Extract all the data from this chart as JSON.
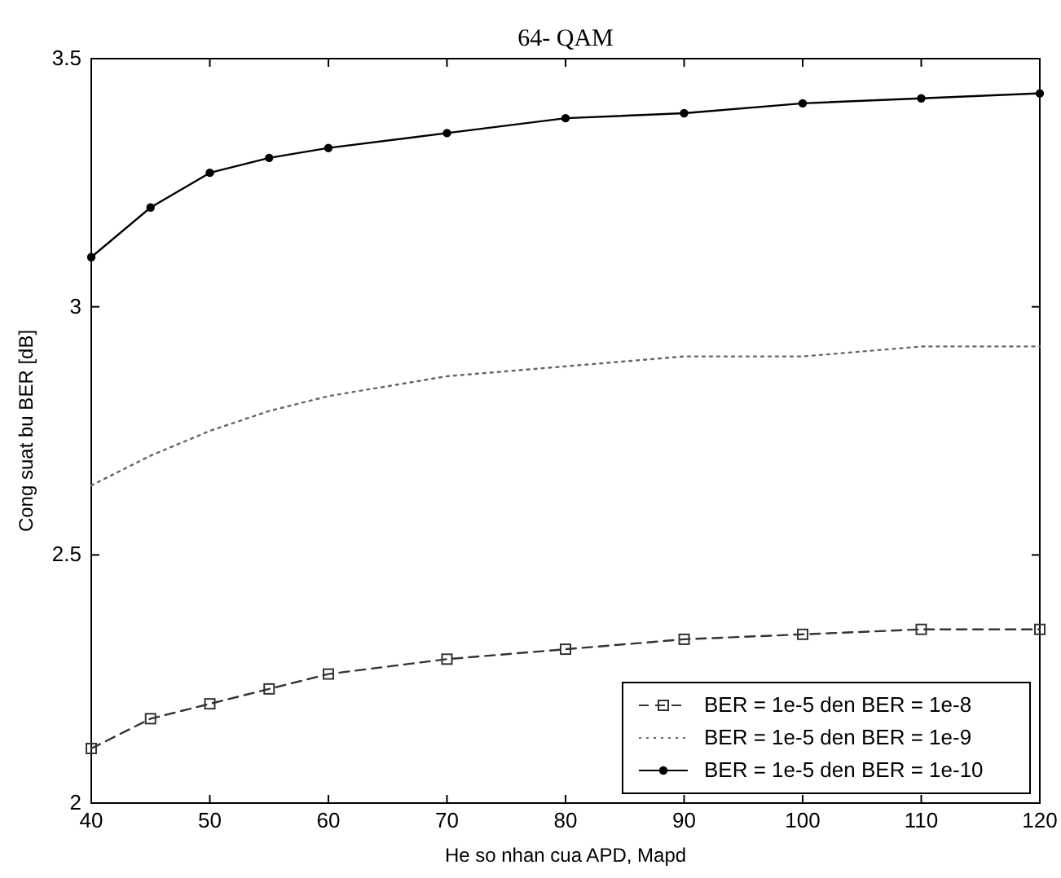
{
  "chart_data": {
    "type": "line",
    "title": "64- QAM",
    "xlabel": "He so nhan cua APD, Mapd",
    "ylabel": "Cong suat bu BER [dB]",
    "x": [
      40,
      45,
      50,
      55,
      60,
      70,
      80,
      90,
      100,
      110,
      120
    ],
    "series": [
      {
        "name": "BER = 1e-5 den BER = 1e-8",
        "color": "#333333",
        "marker": "square",
        "line_style": "dashed",
        "values": [
          2.11,
          2.17,
          2.2,
          2.23,
          2.26,
          2.29,
          2.31,
          2.33,
          2.34,
          2.35,
          2.35
        ]
      },
      {
        "name": "BER = 1e-5 den BER = 1e-9",
        "color": "#666666",
        "marker": "none",
        "line_style": "dotted",
        "values": [
          2.64,
          2.7,
          2.75,
          2.79,
          2.82,
          2.86,
          2.88,
          2.9,
          2.9,
          2.92,
          2.92
        ]
      },
      {
        "name": "BER = 1e-5 den BER = 1e-10",
        "color": "#000000",
        "marker": "circle",
        "line_style": "solid",
        "values": [
          3.1,
          3.2,
          3.27,
          3.3,
          3.32,
          3.35,
          3.38,
          3.39,
          3.41,
          3.42,
          3.43
        ]
      }
    ],
    "xlim": [
      40,
      120
    ],
    "xticks": [
      40,
      50,
      60,
      70,
      80,
      90,
      100,
      110,
      120
    ],
    "ylim": [
      2,
      3.5
    ],
    "yticks": [
      2,
      2.5,
      3,
      3.5
    ],
    "grid": false,
    "legend": "bottom right"
  }
}
